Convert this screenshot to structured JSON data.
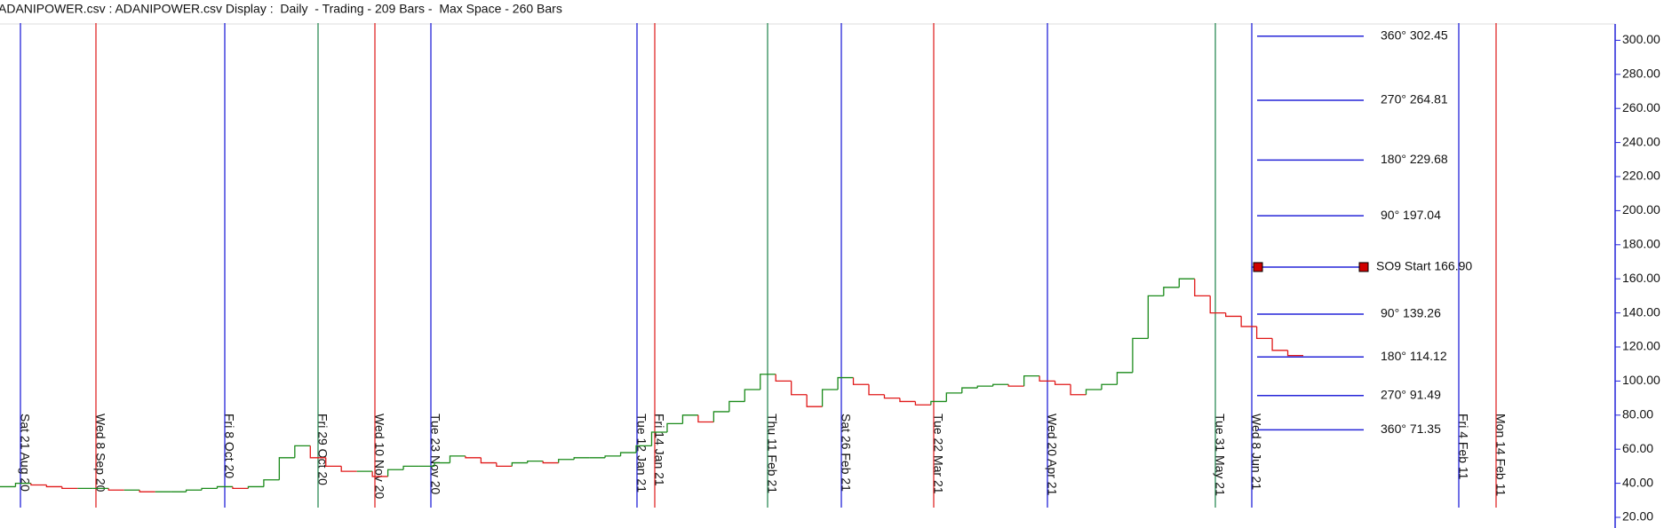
{
  "header": "ADANIPOWER.csv : ADANIPOWER.csv Display :  Daily  - Trading - 209 Bars -  Max Space - 260 Bars",
  "chart_data": {
    "type": "step",
    "values": [
      38,
      40,
      39,
      38,
      37,
      37,
      37,
      36,
      36,
      35,
      35,
      35,
      36,
      37,
      38,
      37,
      38,
      42,
      55,
      62,
      55,
      50,
      47,
      47,
      44,
      48,
      50,
      50,
      52,
      56,
      55,
      52,
      50,
      52,
      53,
      52,
      54,
      55,
      55,
      56,
      58,
      62,
      70,
      75,
      80,
      76,
      82,
      88,
      95,
      104,
      100,
      92,
      85,
      95,
      102,
      98,
      92,
      90,
      88,
      86,
      88,
      93,
      96,
      97,
      98,
      97,
      103,
      100,
      98,
      92,
      95,
      98,
      105,
      125,
      150,
      155,
      160,
      150,
      140,
      138,
      132,
      125,
      118,
      115
    ],
    "up_color": "#1a8a1a",
    "down_color": "#e01818",
    "ylim": [
      13.75,
      310.1
    ],
    "yticks": [
      {
        "value": 20,
        "label": "20.00"
      },
      {
        "value": 40,
        "label": "40.00"
      },
      {
        "value": 60,
        "label": "60.00"
      },
      {
        "value": 80,
        "label": "80.00"
      },
      {
        "value": 100,
        "label": "100.00"
      },
      {
        "value": 120,
        "label": "120.00"
      },
      {
        "value": 140,
        "label": "140.00"
      },
      {
        "value": 160,
        "label": "160.00"
      },
      {
        "value": 180,
        "label": "180.00"
      },
      {
        "value": 200,
        "label": "200.00"
      },
      {
        "value": 220,
        "label": "220.00"
      },
      {
        "value": 240,
        "label": "240.00"
      },
      {
        "value": 260,
        "label": "260.00"
      },
      {
        "value": 280,
        "label": "280.00"
      },
      {
        "value": 300,
        "label": "300.00"
      }
    ],
    "date_lines": [
      {
        "label": "Sat 21 Aug 20",
        "color": "#2424d8"
      },
      {
        "label": "Wed 8 Sep 20",
        "color": "#e02828"
      },
      {
        "label": "Fri 8 Oct 20",
        "color": "#2424d8"
      },
      {
        "label": "Fri 29 Oct 20",
        "color": "#2e8b57"
      },
      {
        "label": "Wed 10 Nov 20",
        "color": "#e02828"
      },
      {
        "label": "Tue 23 Nov 20",
        "color": "#2424d8"
      },
      {
        "label": "Tue 12 Jan 21",
        "color": "#2424d8"
      },
      {
        "label": "Fri 14 Jan 21",
        "color": "#e02828"
      },
      {
        "label": "Thu 11 Feb 21",
        "color": "#2e8b57"
      },
      {
        "label": "Sat 26 Feb 21",
        "color": "#2424d8"
      },
      {
        "label": "Tue 22 Mar 21",
        "color": "#e02828"
      },
      {
        "label": "Wed 20 Apr 21",
        "color": "#2424d8"
      },
      {
        "label": "Tue 31 May 21",
        "color": "#2e8b57"
      },
      {
        "label": "Wed 8 Jun 21",
        "color": "#2424d8"
      },
      {
        "label": "Fri 4 Feb 11",
        "color": "#2424d8"
      },
      {
        "label": "Mon 14 Feb 11",
        "color": "#e02828"
      }
    ],
    "levels": [
      {
        "label": "360° 302.45",
        "value": 302.45
      },
      {
        "label": "270° 264.81",
        "value": 264.81
      },
      {
        "label": "180° 229.68",
        "value": 229.68
      },
      {
        "label": "90° 197.04",
        "value": 197.04
      },
      {
        "label": "SO9 Start 166.90",
        "value": 166.9
      },
      {
        "label": "90° 139.26",
        "value": 139.26
      },
      {
        "label": "180° 114.12",
        "value": 114.12
      },
      {
        "label": "270° 91.49",
        "value": 91.49
      },
      {
        "label": "360° 71.35",
        "value": 71.35
      }
    ],
    "level_color": "#2424d8",
    "marker_color": "#d00000"
  }
}
